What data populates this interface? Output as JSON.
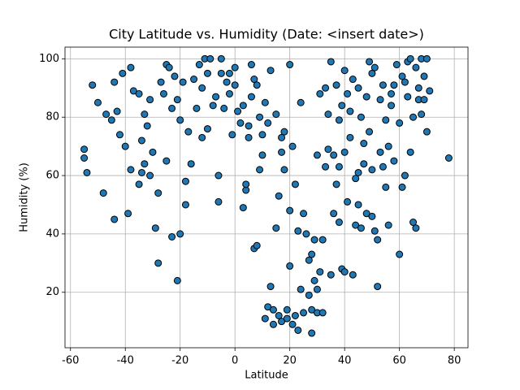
{
  "chart_data": {
    "type": "scatter",
    "title": "City Latitude vs. Humidity (Date: <insert date>)",
    "x_label": "Latitude",
    "y_label": "Humidity (%)",
    "color": "#1f77b4",
    "edgecolor": "#000000",
    "grid": true,
    "xlim": [
      -62,
      85
    ],
    "ylim": [
      1,
      104
    ],
    "xticks": [
      -60,
      -40,
      -20,
      0,
      20,
      40,
      60,
      80
    ],
    "yticks": [
      20,
      40,
      60,
      80,
      100
    ],
    "x": [
      -55,
      -55,
      -54,
      -52,
      -50,
      -48,
      -47,
      -45,
      -44,
      -44,
      -43,
      -42,
      -41,
      -40,
      -39,
      -38,
      -38,
      -37,
      -35,
      -35,
      -34,
      -34,
      -33,
      -33,
      -32,
      -31,
      -31,
      -30,
      -29,
      -28,
      -28,
      -27,
      -26,
      -25,
      -25,
      -24,
      -23,
      -23,
      -22,
      -21,
      -21,
      -20,
      -20,
      -19,
      -18,
      -18,
      -17,
      -16,
      -15,
      -14,
      -13,
      -12,
      -12,
      -11,
      -10,
      -10,
      -9,
      -8,
      -7,
      -6,
      -6,
      -5,
      -5,
      -4,
      -3,
      -2,
      -2,
      -1,
      0,
      0,
      1,
      2,
      3,
      3,
      4,
      4,
      5,
      5,
      6,
      6,
      7,
      7,
      8,
      8,
      9,
      9,
      10,
      10,
      11,
      11,
      12,
      12,
      13,
      13,
      14,
      14,
      15,
      15,
      16,
      16,
      17,
      17,
      17,
      18,
      18,
      19,
      19,
      20,
      20,
      20,
      21,
      21,
      22,
      22,
      23,
      23,
      24,
      24,
      25,
      25,
      26,
      27,
      27,
      28,
      28,
      28,
      29,
      29,
      30,
      30,
      30,
      31,
      31,
      32,
      32,
      33,
      33,
      34,
      34,
      35,
      35,
      36,
      36,
      37,
      37,
      38,
      38,
      38,
      39,
      39,
      40,
      40,
      40,
      41,
      41,
      42,
      42,
      43,
      43,
      44,
      44,
      45,
      45,
      45,
      46,
      46,
      47,
      47,
      48,
      48,
      49,
      49,
      50,
      50,
      50,
      51,
      51,
      52,
      52,
      53,
      53,
      54,
      54,
      55,
      55,
      56,
      56,
      57,
      57,
      58,
      58,
      59,
      60,
      60,
      61,
      61,
      62,
      62,
      63,
      63,
      64,
      64,
      65,
      65,
      66,
      66,
      67,
      67,
      68,
      68,
      69,
      69,
      70,
      70,
      71,
      78
    ],
    "values": [
      66,
      69,
      61,
      91,
      85,
      54,
      81,
      79,
      92,
      45,
      82,
      74,
      95,
      70,
      47,
      97,
      62,
      89,
      88,
      57,
      72,
      61,
      81,
      64,
      77,
      86,
      60,
      68,
      42,
      30,
      54,
      92,
      88,
      65,
      98,
      97,
      39,
      83,
      94,
      86,
      24,
      40,
      79,
      92,
      58,
      50,
      75,
      64,
      93,
      83,
      98,
      73,
      90,
      100,
      95,
      76,
      100,
      84,
      87,
      60,
      51,
      100,
      95,
      83,
      92,
      88,
      95,
      74,
      97,
      91,
      82,
      78,
      84,
      49,
      55,
      57,
      73,
      77,
      98,
      87,
      35,
      93,
      91,
      36,
      62,
      80,
      74,
      67,
      11,
      85,
      15,
      78,
      22,
      96,
      9,
      14,
      81,
      42,
      12,
      53,
      10,
      68,
      73,
      62,
      75,
      11,
      14,
      98,
      48,
      29,
      70,
      9,
      12,
      57,
      7,
      41,
      85,
      21,
      13,
      47,
      40,
      19,
      31,
      6,
      14,
      33,
      38,
      24,
      67,
      21,
      13,
      88,
      27,
      38,
      13,
      63,
      90,
      69,
      81,
      26,
      99,
      47,
      67,
      91,
      57,
      44,
      79,
      63,
      28,
      84,
      68,
      96,
      27,
      88,
      51,
      82,
      73,
      26,
      93,
      59,
      43,
      90,
      50,
      61,
      80,
      42,
      71,
      64,
      47,
      87,
      75,
      99,
      62,
      46,
      95,
      97,
      41,
      38,
      22,
      86,
      68,
      91,
      63,
      79,
      56,
      70,
      43,
      84,
      88,
      91,
      65,
      98,
      78,
      33,
      56,
      94,
      92,
      60,
      99,
      87,
      68,
      100,
      44,
      80,
      97,
      42,
      90,
      86,
      100,
      81,
      94,
      86,
      75,
      100,
      89,
      66
    ]
  }
}
